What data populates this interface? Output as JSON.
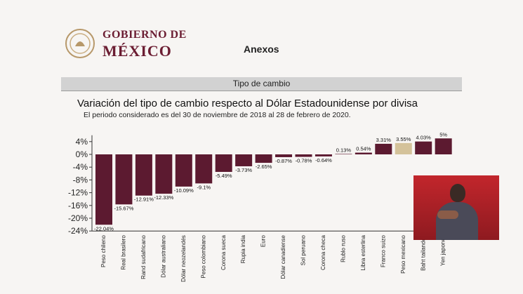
{
  "header": {
    "brand_line1": "GOBIERNO DE",
    "brand_line2": "MÉXICO",
    "brand_color": "#6b1d32",
    "section": "Anexos"
  },
  "band": {
    "label": "Tipo de cambio"
  },
  "chart_data": {
    "type": "bar",
    "title": "Variación del tipo de cambio respecto al Dólar Estadounidense por divisa",
    "subtitle": "El periodo considerado es del 30 de noviembre de 2018 al 28 de febrero de 2020.",
    "categories": [
      "Peso chileno",
      "Real brasilero",
      "Rand sudafricano",
      "Dólar australiano",
      "Dólar neozelandés",
      "Peso colombiano",
      "Corona sueca",
      "Rupia india",
      "Euro",
      "Dólar canadiense",
      "Sol peruano",
      "Corona checa",
      "Rublo ruso",
      "Libra esterlina",
      "Franco suizo",
      "Peso mexicano",
      "Baht tailandés",
      "Yen japonés"
    ],
    "values": [
      -22.04,
      -15.67,
      -12.91,
      -12.33,
      -10.09,
      -9.1,
      -5.49,
      -3.73,
      -2.65,
      -0.87,
      -0.78,
      -0.64,
      0.13,
      0.54,
      3.31,
      3.55,
      4.03,
      5
    ],
    "value_labels": [
      "-22.04%",
      "-15.67%",
      "-12.91%",
      "-12.33%",
      "-10.09%",
      "-9.1%",
      "-5.49%",
      "-3.73%",
      "-2.65%",
      "-0.87%",
      "-0.78%",
      "-0.64%",
      "0.13%",
      "0.54%",
      "3.31%",
      "3.55%",
      "4.03%",
      "5%"
    ],
    "yticks": [
      4,
      0,
      -4,
      -8,
      -12,
      -16,
      -20,
      -24
    ],
    "ytick_labels": [
      "4%",
      "0%",
      "-4%",
      "-8%",
      "-12%",
      "-16%",
      "-20%",
      "-24%"
    ],
    "ylim": [
      -24,
      6
    ],
    "colors": {
      "default": "#5c1a30",
      "highlight": "#d4c29a"
    },
    "highlight_category": "Peso mexicano",
    "grid": false,
    "legend": false
  }
}
